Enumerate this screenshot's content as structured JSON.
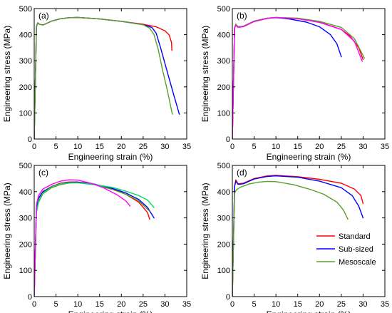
{
  "figure": {
    "legend": [
      {
        "name": "Standard",
        "color": "#ff0000"
      },
      {
        "name": "Sub-sized",
        "color": "#0000ff"
      },
      {
        "name": "Mesoscale",
        "color": "#5aa02c"
      }
    ]
  },
  "chart_data": [
    {
      "type": "line",
      "panel_label": "(a)",
      "xlabel": "Engineering strain (%)",
      "ylabel": "Engineering stress (MPa)",
      "xlim": [
        0,
        35
      ],
      "ylim": [
        0,
        500
      ],
      "xticks": [
        0,
        5,
        10,
        15,
        20,
        25,
        30,
        35
      ],
      "yticks": [
        0,
        100,
        200,
        300,
        400,
        500
      ],
      "series": [
        {
          "color": "#ff0000",
          "points": [
            [
              0,
              0
            ],
            [
              0.5,
              430
            ],
            [
              0.8,
              445
            ],
            [
              1.2,
              440
            ],
            [
              2,
              437
            ],
            [
              4,
              452
            ],
            [
              6,
              461
            ],
            [
              8,
              465
            ],
            [
              10,
              466
            ],
            [
              15,
              460
            ],
            [
              20,
              451
            ],
            [
              25,
              440
            ],
            [
              28,
              430
            ],
            [
              30,
              415
            ],
            [
              31,
              398
            ],
            [
              31.5,
              370
            ],
            [
              31.6,
              340
            ]
          ]
        },
        {
          "color": "#0000ff",
          "points": [
            [
              0,
              0
            ],
            [
              0.5,
              430
            ],
            [
              0.8,
              445
            ],
            [
              1.2,
              440
            ],
            [
              2,
              437
            ],
            [
              4,
              452
            ],
            [
              6,
              461
            ],
            [
              8,
              465
            ],
            [
              10,
              466
            ],
            [
              15,
              460
            ],
            [
              20,
              451
            ],
            [
              25,
              438
            ],
            [
              27,
              428
            ],
            [
              28,
              405
            ],
            [
              29,
              350
            ],
            [
              30,
              290
            ],
            [
              31,
              230
            ],
            [
              32,
              170
            ],
            [
              33.3,
              95
            ]
          ]
        },
        {
          "color": "#5aa02c",
          "points": [
            [
              0,
              0
            ],
            [
              0.5,
              430
            ],
            [
              0.8,
              445
            ],
            [
              1.2,
              440
            ],
            [
              2,
              437
            ],
            [
              4,
              452
            ],
            [
              6,
              461
            ],
            [
              8,
              465
            ],
            [
              10,
              466
            ],
            [
              15,
              460
            ],
            [
              20,
              451
            ],
            [
              25,
              438
            ],
            [
              26.5,
              425
            ],
            [
              27.5,
              400
            ],
            [
              28.5,
              340
            ],
            [
              29.5,
              260
            ],
            [
              30.5,
              190
            ],
            [
              31.7,
              95
            ]
          ]
        }
      ]
    },
    {
      "type": "line",
      "panel_label": "(b)",
      "xlabel": "Engineering strain (%)",
      "ylabel": "Engineering stress (MPa)",
      "xlim": [
        0,
        35
      ],
      "ylim": [
        0,
        500
      ],
      "xticks": [
        0,
        5,
        10,
        15,
        20,
        25,
        30,
        35
      ],
      "yticks": [
        0,
        100,
        200,
        300,
        400,
        500
      ],
      "series": [
        {
          "color": "#ff0000",
          "points": [
            [
              0,
              0
            ],
            [
              0.5,
              425
            ],
            [
              0.8,
              440
            ],
            [
              1.3,
              430
            ],
            [
              2.5,
              432
            ],
            [
              5,
              452
            ],
            [
              8,
              463
            ],
            [
              10,
              466
            ],
            [
              15,
              462
            ],
            [
              20,
              448
            ],
            [
              25,
              420
            ],
            [
              27,
              395
            ],
            [
              29,
              350
            ],
            [
              30,
              305
            ]
          ]
        },
        {
          "color": "#0000ff",
          "points": [
            [
              0,
              0
            ],
            [
              0.5,
              425
            ],
            [
              0.8,
              440
            ],
            [
              1.3,
              430
            ],
            [
              2.5,
              432
            ],
            [
              5,
              452
            ],
            [
              8,
              463
            ],
            [
              10,
              465
            ],
            [
              13,
              460
            ],
            [
              17,
              448
            ],
            [
              20,
              430
            ],
            [
              22.5,
              400
            ],
            [
              24,
              365
            ],
            [
              25,
              315
            ]
          ]
        },
        {
          "color": "#5aa02c",
          "points": [
            [
              0,
              0
            ],
            [
              0.5,
              425
            ],
            [
              0.8,
              440
            ],
            [
              1.3,
              430
            ],
            [
              2.5,
              432
            ],
            [
              5,
              452
            ],
            [
              8,
              463
            ],
            [
              10,
              466
            ],
            [
              15,
              463
            ],
            [
              20,
              451
            ],
            [
              25,
              428
            ],
            [
              28,
              385
            ],
            [
              30.3,
              310
            ]
          ]
        },
        {
          "color": "#ff00ff",
          "points": [
            [
              0,
              0
            ],
            [
              0.5,
              425
            ],
            [
              0.8,
              435
            ],
            [
              1.3,
              428
            ],
            [
              2.5,
              430
            ],
            [
              5,
              450
            ],
            [
              8,
              462
            ],
            [
              10,
              465
            ],
            [
              15,
              461
            ],
            [
              20,
              447
            ],
            [
              25,
              420
            ],
            [
              28,
              375
            ],
            [
              29.8,
              298
            ]
          ]
        }
      ]
    },
    {
      "type": "line",
      "panel_label": "(c)",
      "xlabel": "Engineering strain (%)",
      "ylabel": "Engineering stress (MPa)",
      "xlim": [
        0,
        35
      ],
      "ylim": [
        0,
        500
      ],
      "xticks": [
        0,
        5,
        10,
        15,
        20,
        25,
        30,
        35
      ],
      "yticks": [
        0,
        100,
        200,
        300,
        400,
        500
      ],
      "series": [
        {
          "color": "#ff0000",
          "points": [
            [
              0,
              0
            ],
            [
              0.5,
              340
            ],
            [
              1,
              375
            ],
            [
              2,
              400
            ],
            [
              4,
              420
            ],
            [
              6,
              432
            ],
            [
              8,
              437
            ],
            [
              10,
              437
            ],
            [
              14,
              428
            ],
            [
              18,
              410
            ],
            [
              21,
              390
            ],
            [
              24,
              360
            ],
            [
              26,
              320
            ],
            [
              26.5,
              295
            ]
          ]
        },
        {
          "color": "#0000ff",
          "points": [
            [
              0,
              0
            ],
            [
              0.5,
              340
            ],
            [
              1,
              375
            ],
            [
              2,
              400
            ],
            [
              4,
              418
            ],
            [
              6,
              430
            ],
            [
              8,
              435
            ],
            [
              10,
              436
            ],
            [
              14,
              428
            ],
            [
              18,
              412
            ],
            [
              21,
              395
            ],
            [
              24,
              370
            ],
            [
              26,
              340
            ],
            [
              27.5,
              300
            ]
          ]
        },
        {
          "color": "#5aa02c",
          "points": [
            [
              0,
              0
            ],
            [
              0.5,
              320
            ],
            [
              1,
              360
            ],
            [
              2,
              392
            ],
            [
              4,
              415
            ],
            [
              6,
              427
            ],
            [
              8,
              433
            ],
            [
              10,
              434
            ],
            [
              14,
              426
            ],
            [
              18,
              408
            ],
            [
              21,
              390
            ],
            [
              24,
              365
            ],
            [
              26.5,
              325
            ]
          ]
        },
        {
          "color": "#00dd66",
          "points": [
            [
              0,
              0
            ],
            [
              0.5,
              320
            ],
            [
              1,
              365
            ],
            [
              2,
              395
            ],
            [
              4,
              418
            ],
            [
              6,
              430
            ],
            [
              8,
              434
            ],
            [
              10,
              434
            ],
            [
              14,
              427
            ],
            [
              18,
              416
            ],
            [
              21,
              402
            ],
            [
              24,
              385
            ],
            [
              26,
              368
            ],
            [
              27.5,
              340
            ]
          ]
        },
        {
          "color": "#ff00ff",
          "points": [
            [
              0,
              0
            ],
            [
              0.5,
              350
            ],
            [
              1,
              385
            ],
            [
              2,
              410
            ],
            [
              4,
              428
            ],
            [
              6,
              440
            ],
            [
              8,
              445
            ],
            [
              10,
              444
            ],
            [
              13,
              432
            ],
            [
              16,
              414
            ],
            [
              19,
              388
            ],
            [
              21,
              365
            ],
            [
              22,
              345
            ]
          ]
        }
      ]
    },
    {
      "type": "line",
      "panel_label": "(d)",
      "xlabel": "Engineering strain (%)",
      "ylabel": "Engineering stress (MPa)",
      "xlim": [
        0,
        35
      ],
      "ylim": [
        0,
        500
      ],
      "xticks": [
        0,
        5,
        10,
        15,
        20,
        25,
        30,
        35
      ],
      "yticks": [
        0,
        100,
        200,
        300,
        400,
        500
      ],
      "series": [
        {
          "color": "#ff0000",
          "points": [
            [
              0,
              0
            ],
            [
              0.5,
              420
            ],
            [
              0.8,
              445
            ],
            [
              1.3,
              430
            ],
            [
              2.5,
              432
            ],
            [
              5,
              450
            ],
            [
              8,
              460
            ],
            [
              10,
              462
            ],
            [
              15,
              457
            ],
            [
              20,
              447
            ],
            [
              25,
              432
            ],
            [
              28,
              410
            ],
            [
              29.5,
              385
            ],
            [
              30,
              355
            ]
          ]
        },
        {
          "color": "#0000ff",
          "points": [
            [
              0,
              0
            ],
            [
              0.5,
              420
            ],
            [
              0.8,
              440
            ],
            [
              1.3,
              428
            ],
            [
              2.5,
              430
            ],
            [
              5,
              448
            ],
            [
              8,
              458
            ],
            [
              10,
              460
            ],
            [
              15,
              455
            ],
            [
              20,
              440
            ],
            [
              25,
              415
            ],
            [
              27.5,
              385
            ],
            [
              29,
              345
            ],
            [
              30,
              300
            ]
          ]
        },
        {
          "color": "#5aa02c",
          "points": [
            [
              0,
              0
            ],
            [
              0.5,
              395
            ],
            [
              1,
              408
            ],
            [
              2,
              418
            ],
            [
              4,
              430
            ],
            [
              6,
              436
            ],
            [
              8,
              439
            ],
            [
              10,
              438
            ],
            [
              14,
              427
            ],
            [
              18,
              408
            ],
            [
              21,
              390
            ],
            [
              24,
              360
            ],
            [
              25.5,
              330
            ],
            [
              26.5,
              295
            ]
          ]
        }
      ]
    }
  ]
}
